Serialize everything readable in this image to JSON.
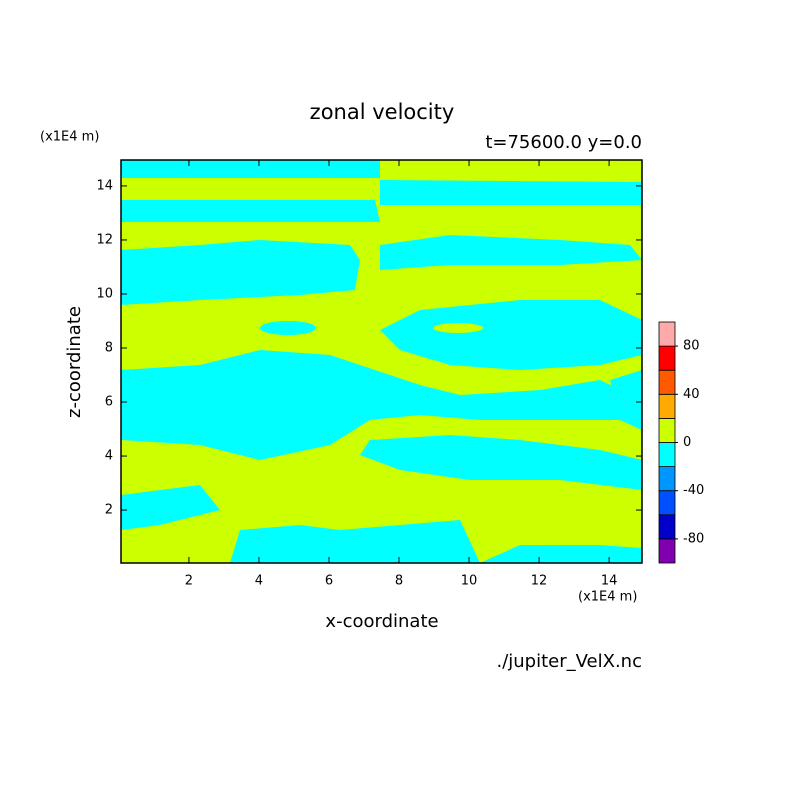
{
  "chart_data": {
    "type": "contour",
    "title": "zonal velocity",
    "subtitle": "t=75600.0 y=0.0",
    "x_label": "x-coordinate",
    "y_label": "z-coordinate",
    "x_unit": "(x1E4 m)",
    "y_unit": "(x1E4 m)",
    "source": "./jupiter_VelX.nc",
    "xlim": [
      0.06,
      14.94
    ],
    "ylim": [
      0.04,
      14.96
    ],
    "xticks": [
      2,
      4,
      6,
      8,
      10,
      12,
      14
    ],
    "yticks": [
      2,
      4,
      6,
      8,
      10,
      12,
      14
    ],
    "colorbar": {
      "levels": [
        -100,
        -80,
        -60,
        -40,
        -20,
        0,
        20,
        40,
        60,
        80,
        100
      ],
      "colors": [
        "#8000b0",
        "#0000c8",
        "#0050ff",
        "#0096ff",
        "#00ffff",
        "#ccff00",
        "#ffaa00",
        "#ff5a00",
        "#ff0000",
        "#ffaaaa"
      ],
      "ticks": [
        -80,
        -40,
        0,
        40,
        80
      ]
    }
  }
}
